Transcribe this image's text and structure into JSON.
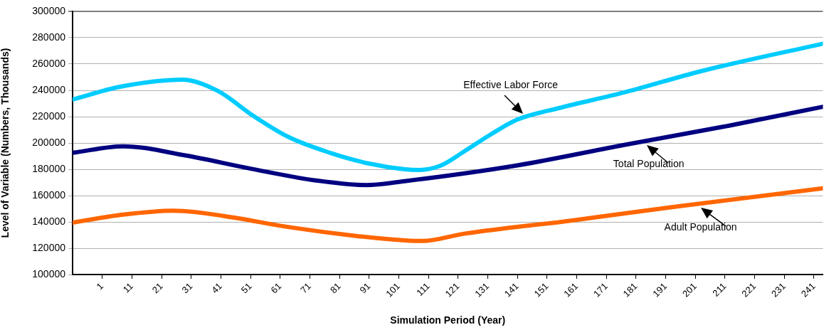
{
  "chart_data": {
    "type": "line",
    "xlabel": "Simulation Period (Year)",
    "ylabel": "Level of Variable (Numbers, Thousands)",
    "xlim": [
      -9,
      244
    ],
    "xticks": [
      1,
      11,
      21,
      31,
      41,
      51,
      61,
      71,
      81,
      91,
      101,
      111,
      121,
      131,
      141,
      151,
      161,
      171,
      181,
      191,
      201,
      211,
      221,
      231,
      241
    ],
    "ylim": [
      100000,
      300000
    ],
    "yticks": [
      100000,
      120000,
      140000,
      160000,
      180000,
      200000,
      220000,
      240000,
      260000,
      280000,
      300000
    ],
    "grid": "y",
    "legend": false,
    "marker": "none",
    "line_style": "solid",
    "series": [
      {
        "name": "Effective Labor Force",
        "color": "#00ccff",
        "x": [
          -9,
          7,
          28,
          40,
          52,
          64,
          78,
          91,
          103,
          108,
          115,
          123,
          132,
          141,
          155,
          177,
          203,
          244
        ],
        "values": [
          233000,
          242700,
          248100,
          239500,
          220500,
          204300,
          192400,
          184300,
          180000,
          179500,
          182700,
          193500,
          206500,
          217800,
          226500,
          238400,
          254600,
          275500
        ]
      },
      {
        "name": "Total Population",
        "color": "#000080",
        "x": [
          -9,
          8,
          29,
          51,
          73,
          90,
          103,
          141,
          177,
          212,
          244
        ],
        "values": [
          192500,
          197500,
          190500,
          180500,
          171500,
          168000,
          171000,
          183000,
          198500,
          213000,
          227500
        ]
      },
      {
        "name": "Adult Population",
        "color": "#ff6600",
        "x": [
          -9,
          8,
          25,
          42,
          64,
          86,
          103,
          109,
          123,
          159,
          194,
          244
        ],
        "values": [
          139500,
          145500,
          148500,
          144500,
          136000,
          129500,
          126000,
          125500,
          131000,
          141000,
          151500,
          165500
        ]
      }
    ]
  }
}
